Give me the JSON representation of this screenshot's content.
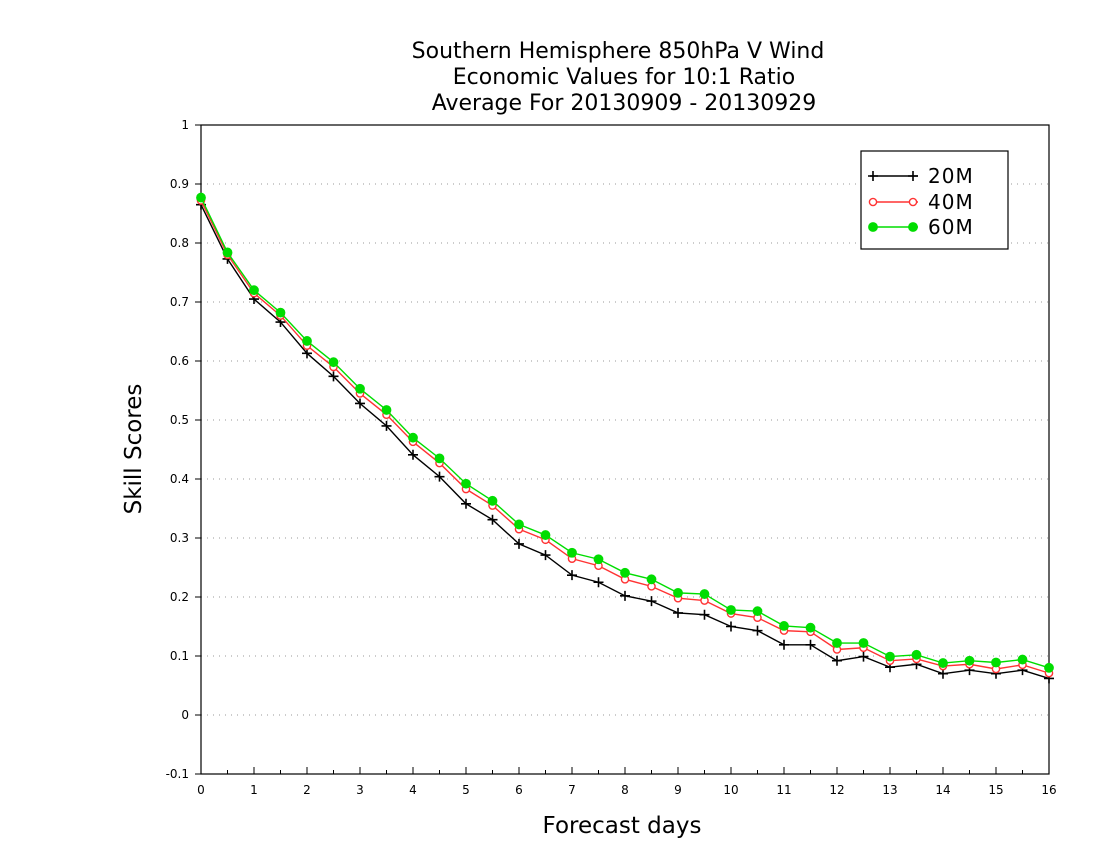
{
  "chart_data": {
    "type": "line",
    "title": [
      "Southern Hemisphere 850hPa V Wind",
      "Economic Values for 10:1 Ratio",
      "Average For 20130909 - 20130929"
    ],
    "xlabel": "Forecast days",
    "ylabel": "Skill Scores",
    "xlim": [
      0,
      16
    ],
    "ylim": [
      -0.1,
      1
    ],
    "x_ticks": [
      "0",
      "1",
      "2",
      "3",
      "4",
      "5",
      "6",
      "7",
      "8",
      "9",
      "10",
      "11",
      "12",
      "13",
      "14",
      "15",
      "16"
    ],
    "y_ticks": [
      "-0.1",
      "0",
      "0.1",
      "0.2",
      "0.3",
      "0.4",
      "0.5",
      "0.6",
      "0.7",
      "0.8",
      "0.9",
      "1"
    ],
    "grid": true,
    "legend_position": "top-right",
    "x": [
      0,
      0.5,
      1,
      1.5,
      2,
      2.5,
      3,
      3.5,
      4,
      4.5,
      5,
      5.5,
      6,
      6.5,
      7,
      7.5,
      8,
      8.5,
      9,
      9.5,
      10,
      10.5,
      11,
      11.5,
      12,
      12.5,
      13,
      13.5,
      14,
      14.5,
      15,
      15.5,
      16
    ],
    "series": [
      {
        "name": "20M",
        "color": "#000000",
        "marker": "plus",
        "values": [
          0.865,
          0.773,
          0.705,
          0.666,
          0.613,
          0.574,
          0.528,
          0.49,
          0.441,
          0.404,
          0.358,
          0.331,
          0.29,
          0.271,
          0.237,
          0.225,
          0.202,
          0.193,
          0.173,
          0.17,
          0.15,
          0.143,
          0.119,
          0.119,
          0.092,
          0.099,
          0.081,
          0.086,
          0.07,
          0.076,
          0.07,
          0.076,
          0.062
        ]
      },
      {
        "name": "40M",
        "color": "#ff3333",
        "marker": "open-circle",
        "values": [
          0.872,
          0.78,
          0.715,
          0.677,
          0.626,
          0.59,
          0.545,
          0.509,
          0.463,
          0.427,
          0.383,
          0.355,
          0.315,
          0.297,
          0.265,
          0.253,
          0.23,
          0.218,
          0.198,
          0.194,
          0.172,
          0.165,
          0.143,
          0.141,
          0.111,
          0.114,
          0.092,
          0.095,
          0.083,
          0.086,
          0.078,
          0.085,
          0.071
        ]
      },
      {
        "name": "60M",
        "color": "#00dd00",
        "marker": "filled-circle",
        "values": [
          0.877,
          0.784,
          0.72,
          0.682,
          0.634,
          0.598,
          0.553,
          0.517,
          0.47,
          0.435,
          0.392,
          0.363,
          0.323,
          0.305,
          0.275,
          0.264,
          0.241,
          0.23,
          0.207,
          0.205,
          0.178,
          0.176,
          0.151,
          0.148,
          0.122,
          0.122,
          0.099,
          0.102,
          0.088,
          0.092,
          0.089,
          0.094,
          0.08
        ]
      }
    ]
  }
}
